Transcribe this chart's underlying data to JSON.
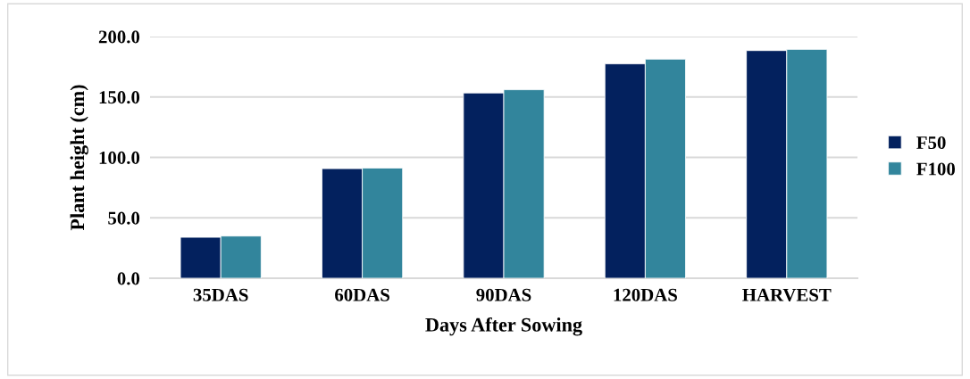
{
  "chart_data": {
    "type": "bar",
    "xlabel": "Days After Sowing",
    "ylabel": "Plant height (cm)",
    "categories": [
      "35DAS",
      "60DAS",
      "90DAS",
      "120DAS",
      "HARVEST"
    ],
    "series": [
      {
        "name": "F50",
        "color": "#03215e",
        "values": [
          33.9,
          90.7,
          153.3,
          177.4,
          188.4
        ]
      },
      {
        "name": "F100",
        "color": "#32859c",
        "values": [
          34.9,
          91.2,
          156.0,
          181.3,
          189.4
        ]
      }
    ],
    "ylim": [
      0,
      200
    ],
    "yticks": [
      {
        "value": 0,
        "label": "0.0"
      },
      {
        "value": 50,
        "label": "50.0"
      },
      {
        "value": 100,
        "label": "100.0"
      },
      {
        "value": 150,
        "label": "150.0"
      },
      {
        "value": 200,
        "label": "200.0"
      }
    ],
    "grid": "y",
    "legend": "right"
  }
}
